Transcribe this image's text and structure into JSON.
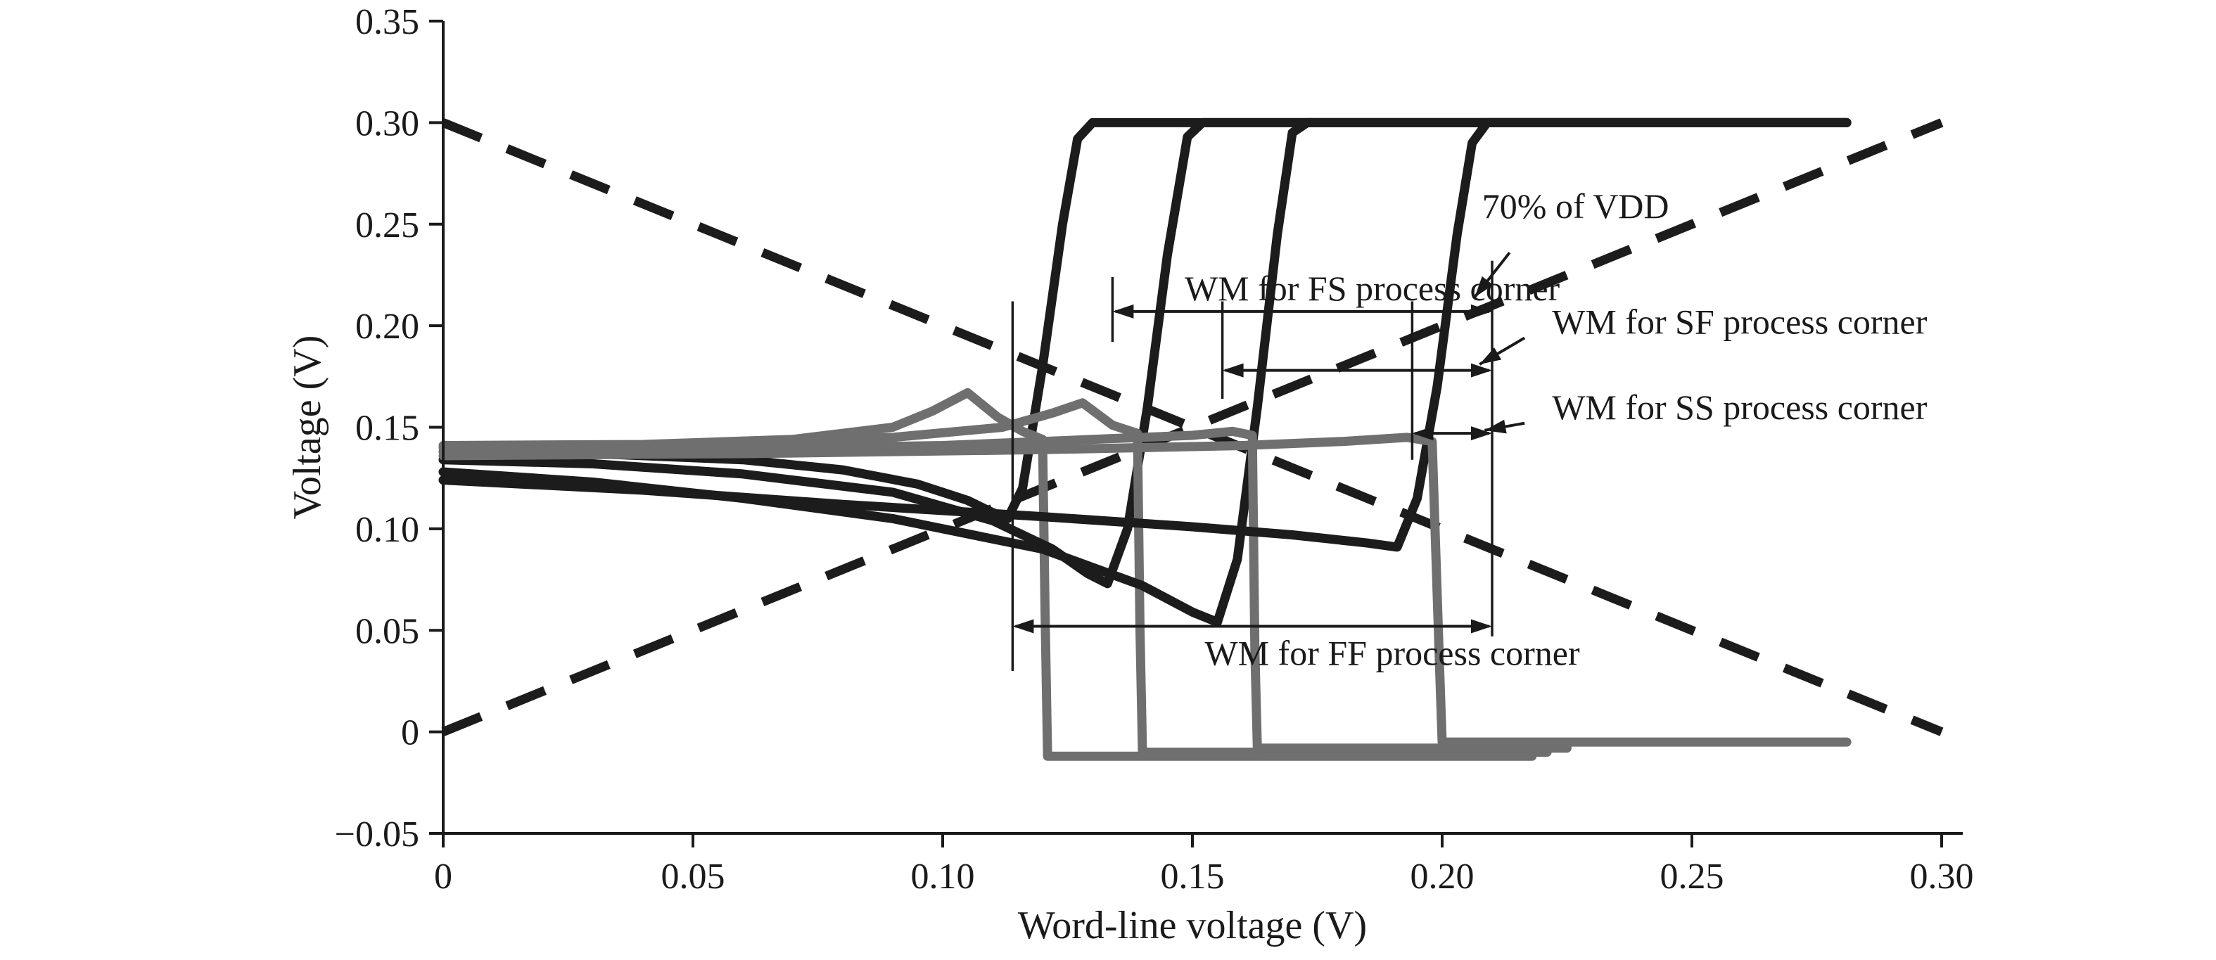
{
  "chart_data": {
    "type": "line",
    "title": "",
    "xlabel": "Word-line voltage (V)",
    "ylabel": "Voltage (V)",
    "xlim": [
      0,
      0.3
    ],
    "ylim": [
      -0.05,
      0.35
    ],
    "grid": false,
    "legend": "none",
    "xticks": [
      {
        "value": 0,
        "label": "0"
      },
      {
        "value": 0.05,
        "label": "0.05"
      },
      {
        "value": 0.1,
        "label": "0.10"
      },
      {
        "value": 0.15,
        "label": "0.15"
      },
      {
        "value": 0.2,
        "label": "0.20"
      },
      {
        "value": 0.25,
        "label": "0.25"
      },
      {
        "value": 0.3,
        "label": "0.30"
      }
    ],
    "yticks": [
      {
        "value": -0.05,
        "label": "−0.05"
      },
      {
        "value": 0,
        "label": "0"
      },
      {
        "value": 0.05,
        "label": "0.05"
      },
      {
        "value": 0.1,
        "label": "0.10"
      },
      {
        "value": 0.15,
        "label": "0.15"
      },
      {
        "value": 0.2,
        "label": "0.20"
      },
      {
        "value": 0.25,
        "label": "0.25"
      },
      {
        "value": 0.3,
        "label": "0.30"
      },
      {
        "value": 0.35,
        "label": "0.35"
      }
    ],
    "colors": {
      "axis": "#1a1a1a",
      "curve_black": "#1c1c1c",
      "curve_gray": "#6f6f6f",
      "dashed": "#1c1c1c",
      "annotation": "#1a1a1a"
    },
    "dashed_series": [
      {
        "name": "bit-line ramp falling",
        "points": [
          [
            0,
            0.3
          ],
          [
            0.3,
            0
          ]
        ]
      },
      {
        "name": "bit-line ramp rising",
        "points": [
          [
            0,
            0
          ],
          [
            0.3,
            0.3
          ]
        ]
      }
    ],
    "series": [
      {
        "corner": "FF",
        "role": "node-high",
        "color": "black",
        "points": [
          [
            0,
            0.138
          ],
          [
            0.03,
            0.137
          ],
          [
            0.06,
            0.134
          ],
          [
            0.08,
            0.129
          ],
          [
            0.095,
            0.122
          ],
          [
            0.105,
            0.114
          ],
          [
            0.11,
            0.108
          ],
          [
            0.113,
            0.105
          ],
          [
            0.116,
            0.12
          ],
          [
            0.12,
            0.18
          ],
          [
            0.124,
            0.25
          ],
          [
            0.127,
            0.292
          ],
          [
            0.13,
            0.3
          ],
          [
            0.281,
            0.3
          ]
        ]
      },
      {
        "corner": "FF",
        "role": "node-low",
        "color": "gray",
        "points": [
          [
            0,
            0.141
          ],
          [
            0.04,
            0.1415
          ],
          [
            0.07,
            0.144
          ],
          [
            0.09,
            0.15
          ],
          [
            0.098,
            0.158
          ],
          [
            0.105,
            0.167
          ],
          [
            0.111,
            0.155
          ],
          [
            0.116,
            0.148
          ],
          [
            0.12,
            0.144
          ],
          [
            0.1205,
            0.06
          ],
          [
            0.121,
            -0.012
          ],
          [
            0.218,
            -0.012
          ]
        ]
      },
      {
        "corner": "FS",
        "role": "node-high",
        "color": "black",
        "points": [
          [
            0,
            0.134
          ],
          [
            0.03,
            0.132
          ],
          [
            0.06,
            0.127
          ],
          [
            0.09,
            0.118
          ],
          [
            0.11,
            0.104
          ],
          [
            0.122,
            0.09
          ],
          [
            0.129,
            0.078
          ],
          [
            0.133,
            0.073
          ],
          [
            0.137,
            0.1
          ],
          [
            0.141,
            0.16
          ],
          [
            0.145,
            0.235
          ],
          [
            0.149,
            0.293
          ],
          [
            0.152,
            0.3
          ],
          [
            0.281,
            0.3
          ]
        ]
      },
      {
        "corner": "FS",
        "role": "node-low",
        "color": "gray",
        "points": [
          [
            0,
            0.14
          ],
          [
            0.05,
            0.141
          ],
          [
            0.09,
            0.145
          ],
          [
            0.112,
            0.15
          ],
          [
            0.122,
            0.157
          ],
          [
            0.128,
            0.162
          ],
          [
            0.134,
            0.151
          ],
          [
            0.139,
            0.147
          ],
          [
            0.1395,
            0.05
          ],
          [
            0.14,
            -0.01
          ],
          [
            0.221,
            -0.01
          ]
        ]
      },
      {
        "corner": "SF",
        "role": "node-high",
        "color": "black",
        "points": [
          [
            0,
            0.128
          ],
          [
            0.03,
            0.123
          ],
          [
            0.06,
            0.115
          ],
          [
            0.09,
            0.105
          ],
          [
            0.12,
            0.09
          ],
          [
            0.14,
            0.072
          ],
          [
            0.15,
            0.059
          ],
          [
            0.155,
            0.054
          ],
          [
            0.159,
            0.085
          ],
          [
            0.163,
            0.16
          ],
          [
            0.167,
            0.245
          ],
          [
            0.17,
            0.295
          ],
          [
            0.173,
            0.3
          ],
          [
            0.281,
            0.3
          ]
        ]
      },
      {
        "corner": "SF",
        "role": "node-low",
        "color": "gray",
        "points": [
          [
            0,
            0.138
          ],
          [
            0.05,
            0.139
          ],
          [
            0.1,
            0.141
          ],
          [
            0.13,
            0.144
          ],
          [
            0.15,
            0.146
          ],
          [
            0.158,
            0.148
          ],
          [
            0.162,
            0.146
          ],
          [
            0.1625,
            0.04
          ],
          [
            0.163,
            -0.008
          ],
          [
            0.225,
            -0.008
          ]
        ]
      },
      {
        "corner": "SS",
        "role": "node-high",
        "color": "black",
        "points": [
          [
            0,
            0.124
          ],
          [
            0.04,
            0.119
          ],
          [
            0.08,
            0.112
          ],
          [
            0.12,
            0.106
          ],
          [
            0.15,
            0.101
          ],
          [
            0.17,
            0.097
          ],
          [
            0.185,
            0.093
          ],
          [
            0.191,
            0.091
          ],
          [
            0.195,
            0.115
          ],
          [
            0.199,
            0.17
          ],
          [
            0.203,
            0.245
          ],
          [
            0.206,
            0.29
          ],
          [
            0.209,
            0.3
          ],
          [
            0.281,
            0.3
          ]
        ]
      },
      {
        "corner": "SS",
        "role": "node-low",
        "color": "gray",
        "points": [
          [
            0,
            0.136
          ],
          [
            0.06,
            0.137
          ],
          [
            0.12,
            0.139
          ],
          [
            0.16,
            0.141
          ],
          [
            0.18,
            0.143
          ],
          [
            0.193,
            0.145
          ],
          [
            0.198,
            0.143
          ],
          [
            0.1995,
            0.03
          ],
          [
            0.2,
            -0.005
          ],
          [
            0.281,
            -0.005
          ]
        ]
      }
    ],
    "reference_lines": [
      {
        "x": 0.114,
        "y1": 0.03,
        "y2": 0.212
      },
      {
        "x": 0.134,
        "y1": 0.192,
        "y2": 0.224
      },
      {
        "x": 0.156,
        "y1": 0.164,
        "y2": 0.212
      },
      {
        "x": 0.194,
        "y1": 0.134,
        "y2": 0.212
      },
      {
        "x": 0.21,
        "y1": 0.047,
        "y2": 0.232
      }
    ],
    "wm_arrows": [
      {
        "id": "fs",
        "x1": 0.134,
        "x2": 0.21,
        "y": 0.207
      },
      {
        "id": "sf",
        "x1": 0.156,
        "x2": 0.21,
        "y": 0.178
      },
      {
        "id": "ss",
        "x1": 0.194,
        "x2": 0.21,
        "y": 0.147
      },
      {
        "id": "ff",
        "x1": 0.114,
        "x2": 0.21,
        "y": 0.052
      }
    ],
    "leader_arrows": [
      {
        "id": "vdd70",
        "x1": 0.2135,
        "y1": 0.236,
        "x2": 0.2065,
        "y2": 0.214
      },
      {
        "id": "sf",
        "x1": 0.2165,
        "y1": 0.194,
        "x2": 0.2075,
        "y2": 0.181
      },
      {
        "id": "ss",
        "x1": 0.2165,
        "y1": 0.152,
        "x2": 0.2085,
        "y2": 0.1485
      }
    ],
    "annotations": [
      {
        "id": "vdd70",
        "text": "70% of VDD",
        "x": 0.208,
        "y": 0.253,
        "anchor": "start"
      },
      {
        "id": "wm-fs",
        "text": "WM for FS process corner",
        "x": 0.186,
        "y": 0.2125,
        "anchor": "middle"
      },
      {
        "id": "wm-sf",
        "text": "WM for SF process corner",
        "x": 0.222,
        "y": 0.196,
        "anchor": "start"
      },
      {
        "id": "wm-ss",
        "text": "WM for SS process corner",
        "x": 0.222,
        "y": 0.154,
        "anchor": "start"
      },
      {
        "id": "wm-ff",
        "text": "WM for FF process corner",
        "x": 0.19,
        "y": 0.033,
        "anchor": "middle"
      }
    ]
  }
}
